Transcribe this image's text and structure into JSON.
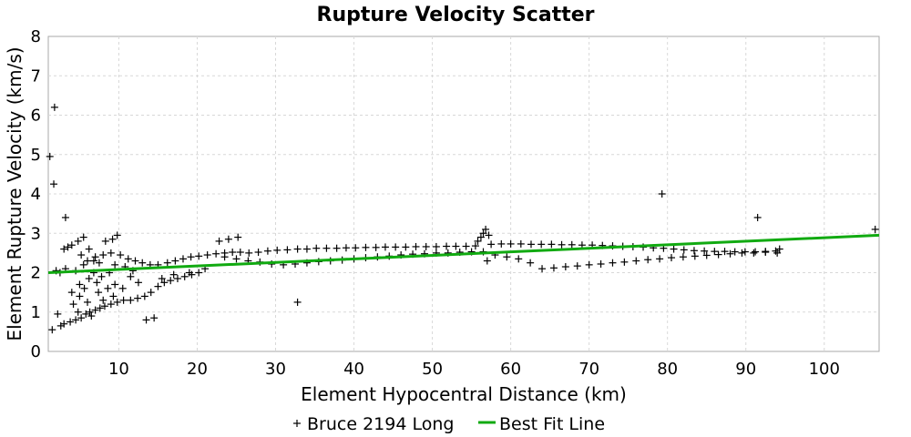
{
  "chart_data": {
    "type": "scatter",
    "title": "Rupture Velocity Scatter",
    "xlabel": "Element Hypocentral Distance (km)",
    "ylabel": "Element Rupture Velocity (km/s)",
    "xlim": [
      1,
      107
    ],
    "ylim": [
      0,
      8
    ],
    "xticks": [
      10,
      20,
      30,
      40,
      50,
      60,
      70,
      80,
      90,
      100
    ],
    "yticks": [
      0,
      1,
      2,
      3,
      4,
      5,
      6,
      7,
      8
    ],
    "grid": true,
    "legend_position": "bottom",
    "colors": {
      "scatter": "#000000",
      "fit_line": "#11aa11",
      "grid": "#d8d8d8",
      "frame": "#aaaaaa"
    },
    "series": [
      {
        "name": "Bruce 2194 Long",
        "marker": "plus",
        "points": [
          [
            1.5,
            0.55
          ],
          [
            2.6,
            0.65
          ],
          [
            3.0,
            0.7
          ],
          [
            3.8,
            0.75
          ],
          [
            4.5,
            0.8
          ],
          [
            5.2,
            0.85
          ],
          [
            5.8,
            0.95
          ],
          [
            6.3,
            1.0
          ],
          [
            7.0,
            1.05
          ],
          [
            7.6,
            1.1
          ],
          [
            8.2,
            1.15
          ],
          [
            9.0,
            1.2
          ],
          [
            9.8,
            1.25
          ],
          [
            10.6,
            1.3
          ],
          [
            11.5,
            1.3
          ],
          [
            12.4,
            1.35
          ],
          [
            13.3,
            1.4
          ],
          [
            14.1,
            1.5
          ],
          [
            15.0,
            1.65
          ],
          [
            15.8,
            1.75
          ],
          [
            16.6,
            1.8
          ],
          [
            17.5,
            1.85
          ],
          [
            18.4,
            1.9
          ],
          [
            19.3,
            1.95
          ],
          [
            20.2,
            2.0
          ],
          [
            4.2,
            1.2
          ],
          [
            5.0,
            1.4
          ],
          [
            5.6,
            1.6
          ],
          [
            6.2,
            1.85
          ],
          [
            6.8,
            2.0
          ],
          [
            7.4,
            1.5
          ],
          [
            8.0,
            1.3
          ],
          [
            8.6,
            1.6
          ],
          [
            9.3,
            1.4
          ],
          [
            4.8,
            1.0
          ],
          [
            6.5,
            0.9
          ],
          [
            7.2,
            1.75
          ],
          [
            5.5,
            2.2
          ],
          [
            6.0,
            2.3
          ],
          [
            7.0,
            2.4
          ],
          [
            8.0,
            2.45
          ],
          [
            9.0,
            2.5
          ],
          [
            10.2,
            2.45
          ],
          [
            11.2,
            2.35
          ],
          [
            12.1,
            2.3
          ],
          [
            13.0,
            2.25
          ],
          [
            14.0,
            2.2
          ],
          [
            15.0,
            2.2
          ],
          [
            16.2,
            2.25
          ],
          [
            17.2,
            2.3
          ],
          [
            18.2,
            2.35
          ],
          [
            19.2,
            2.4
          ],
          [
            20.2,
            2.42
          ],
          [
            21.3,
            2.45
          ],
          [
            22.4,
            2.48
          ],
          [
            23.5,
            2.5
          ],
          [
            24.5,
            2.52
          ],
          [
            25.5,
            2.52
          ],
          [
            26.6,
            2.5
          ],
          [
            27.8,
            2.52
          ],
          [
            29.0,
            2.55
          ],
          [
            30.2,
            2.57
          ],
          [
            31.5,
            2.58
          ],
          [
            32.8,
            2.6
          ],
          [
            34.0,
            2.6
          ],
          [
            35.2,
            2.62
          ],
          [
            36.5,
            2.62
          ],
          [
            37.8,
            2.62
          ],
          [
            39.0,
            2.63
          ],
          [
            40.2,
            2.63
          ],
          [
            41.5,
            2.64
          ],
          [
            42.8,
            2.64
          ],
          [
            44.0,
            2.65
          ],
          [
            45.3,
            2.65
          ],
          [
            46.6,
            2.65
          ],
          [
            47.9,
            2.66
          ],
          [
            49.2,
            2.66
          ],
          [
            50.5,
            2.66
          ],
          [
            51.8,
            2.67
          ],
          [
            53.0,
            2.67
          ],
          [
            54.3,
            2.67
          ],
          [
            55.5,
            2.68
          ],
          [
            57.5,
            2.72
          ],
          [
            58.8,
            2.73
          ],
          [
            60.0,
            2.73
          ],
          [
            61.3,
            2.73
          ],
          [
            62.6,
            2.72
          ],
          [
            63.9,
            2.72
          ],
          [
            65.2,
            2.72
          ],
          [
            66.5,
            2.71
          ],
          [
            67.8,
            2.71
          ],
          [
            69.1,
            2.7
          ],
          [
            70.4,
            2.7
          ],
          [
            71.7,
            2.69
          ],
          [
            73.0,
            2.68
          ],
          [
            74.3,
            2.67
          ],
          [
            75.6,
            2.66
          ],
          [
            76.9,
            2.65
          ],
          [
            78.2,
            2.63
          ],
          [
            79.5,
            2.62
          ],
          [
            80.8,
            2.6
          ],
          [
            82.1,
            2.58
          ],
          [
            83.4,
            2.56
          ],
          [
            84.7,
            2.55
          ],
          [
            86.0,
            2.54
          ],
          [
            87.3,
            2.54
          ],
          [
            88.6,
            2.53
          ],
          [
            89.9,
            2.53
          ],
          [
            91.2,
            2.53
          ],
          [
            92.5,
            2.54
          ],
          [
            93.8,
            2.55
          ],
          [
            94.3,
            2.6
          ],
          [
            25.0,
            2.35
          ],
          [
            26.5,
            2.3
          ],
          [
            28.0,
            2.27
          ],
          [
            29.5,
            2.22
          ],
          [
            31.0,
            2.2
          ],
          [
            32.5,
            2.22
          ],
          [
            34.0,
            2.25
          ],
          [
            35.5,
            2.28
          ],
          [
            37.0,
            2.3
          ],
          [
            38.5,
            2.32
          ],
          [
            40.0,
            2.35
          ],
          [
            41.5,
            2.38
          ],
          [
            43.0,
            2.4
          ],
          [
            44.5,
            2.42
          ],
          [
            46.0,
            2.45
          ],
          [
            47.5,
            2.47
          ],
          [
            49.0,
            2.48
          ],
          [
            50.5,
            2.5
          ],
          [
            52.0,
            2.5
          ],
          [
            53.5,
            2.52
          ],
          [
            55.0,
            2.53
          ],
          [
            56.5,
            2.53
          ],
          [
            57.0,
            2.3
          ],
          [
            58.0,
            2.45
          ],
          [
            59.5,
            2.4
          ],
          [
            61.0,
            2.35
          ],
          [
            62.5,
            2.25
          ],
          [
            64.0,
            2.1
          ],
          [
            65.5,
            2.12
          ],
          [
            67.0,
            2.15
          ],
          [
            68.5,
            2.17
          ],
          [
            70.0,
            2.2
          ],
          [
            71.5,
            2.22
          ],
          [
            73.0,
            2.25
          ],
          [
            74.5,
            2.27
          ],
          [
            76.0,
            2.3
          ],
          [
            77.5,
            2.33
          ],
          [
            79.0,
            2.35
          ],
          [
            80.5,
            2.38
          ],
          [
            82.0,
            2.4
          ],
          [
            83.5,
            2.42
          ],
          [
            85.0,
            2.44
          ],
          [
            86.5,
            2.46
          ],
          [
            88.0,
            2.48
          ],
          [
            89.5,
            2.5
          ],
          [
            91.0,
            2.5
          ],
          [
            92.5,
            2.52
          ],
          [
            94.0,
            2.5
          ],
          [
            56.5,
            3.0
          ],
          [
            56.8,
            3.1
          ],
          [
            56.2,
            2.9
          ],
          [
            57.2,
            2.95
          ],
          [
            55.8,
            2.8
          ],
          [
            24.0,
            2.85
          ],
          [
            25.2,
            2.9
          ],
          [
            22.8,
            2.8
          ],
          [
            23.5,
            2.4
          ],
          [
            21.0,
            2.1
          ],
          [
            19.0,
            2.0
          ],
          [
            17.0,
            1.95
          ],
          [
            15.5,
            1.85
          ],
          [
            3.0,
            2.6
          ],
          [
            3.5,
            2.65
          ],
          [
            4.0,
            2.7
          ],
          [
            4.8,
            2.8
          ],
          [
            5.5,
            2.9
          ],
          [
            6.2,
            2.6
          ],
          [
            6.8,
            2.3
          ],
          [
            7.5,
            2.25
          ],
          [
            8.3,
            2.8
          ],
          [
            9.2,
            2.85
          ],
          [
            9.8,
            2.95
          ],
          [
            2.5,
            2.0
          ],
          [
            2.0,
            2.05
          ],
          [
            3.2,
            2.1
          ],
          [
            4.5,
            2.05
          ],
          [
            5.2,
            2.45
          ],
          [
            8.8,
            2.0
          ],
          [
            9.5,
            2.2
          ],
          [
            10.8,
            2.15
          ],
          [
            11.8,
            2.05
          ],
          [
            13.5,
            0.8
          ],
          [
            14.5,
            0.85
          ],
          [
            3.2,
            3.4
          ],
          [
            1.7,
            4.25
          ],
          [
            1.8,
            6.2
          ],
          [
            1.2,
            4.95
          ],
          [
            2.2,
            0.95
          ],
          [
            4.0,
            1.5
          ],
          [
            5.0,
            1.7
          ],
          [
            6.0,
            1.25
          ],
          [
            7.8,
            1.9
          ],
          [
            9.5,
            1.7
          ],
          [
            10.5,
            1.6
          ],
          [
            11.5,
            1.9
          ],
          [
            12.5,
            1.75
          ],
          [
            32.8,
            1.25
          ],
          [
            79.3,
            4.0
          ],
          [
            91.5,
            3.4
          ],
          [
            106.5,
            3.1
          ]
        ]
      },
      {
        "name": "Best Fit Line",
        "type": "line",
        "x": [
          1,
          107
        ],
        "y": [
          2.0,
          2.95
        ]
      }
    ]
  }
}
